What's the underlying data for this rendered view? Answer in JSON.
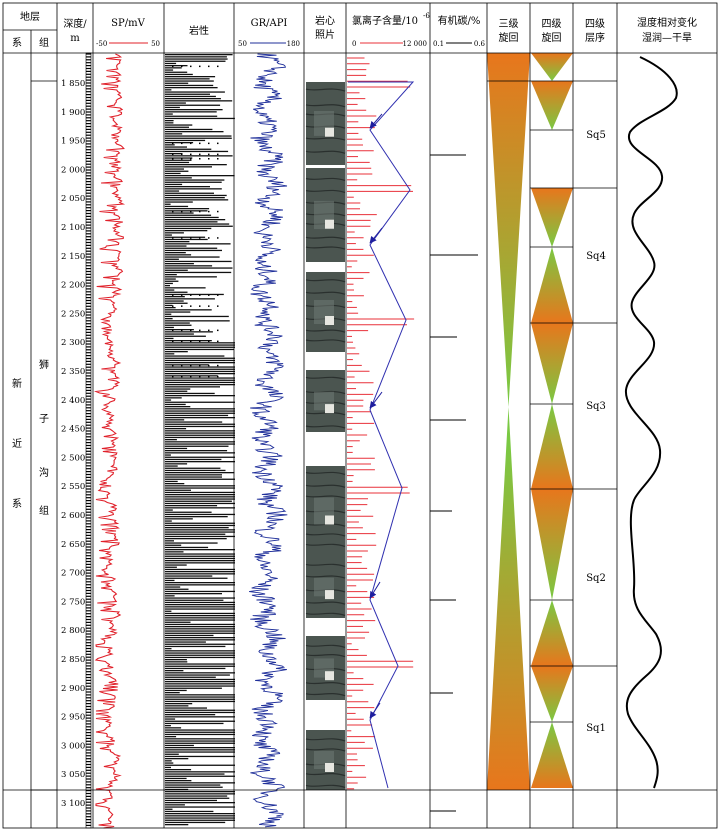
{
  "header": {
    "stratum": "地层",
    "system": "系",
    "group": "组",
    "depth_l1": "深度/",
    "depth_l2": "m",
    "sp_title": "SP/mV",
    "sp_min": "-50",
    "sp_max": "50",
    "lith_title": "岩性",
    "gr_title": "GR/API",
    "gr_min": "50",
    "gr_max": "180",
    "core_l1": "岩心",
    "core_l2": "照片",
    "cl_title": "氯离子含量/10",
    "cl_exp": "-6",
    "cl_min": "0",
    "cl_max": "12 000",
    "toc_title": "有机碳/%",
    "toc_min": "0.1",
    "toc_max": "0.6",
    "third_l1": "三级",
    "third_l2": "旋回",
    "fourth_l1": "四级",
    "fourth_l2": "旋回",
    "seq_l1": "四级",
    "seq_l2": "层序",
    "hum_l1": "湿度相对变化",
    "hum_l2": "湿润—干旱"
  },
  "system_chars": [
    "新",
    "近",
    "系"
  ],
  "group_chars": [
    "狮",
    "子",
    "沟",
    "组"
  ],
  "depth_ticks": [
    "1 850",
    "1 900",
    "1 950",
    "2 000",
    "2 050",
    "2 100",
    "2 150",
    "2 200",
    "2 250",
    "2 300",
    "2 350",
    "2 400",
    "2 450",
    "2 500",
    "2 550",
    "2 600",
    "2 650",
    "2 700",
    "2 750",
    "2 800",
    "2 850",
    "2 900",
    "2 950",
    "3 000",
    "3 050",
    "3 100"
  ],
  "sequences": [
    "Sq5",
    "Sq4",
    "Sq3",
    "Sq2",
    "Sq1"
  ],
  "colors": {
    "sp_curve": "#e0202a",
    "gr_curve": "#1f2f9a",
    "cl_bars": "#e8303a",
    "cl_trend": "#3030b0",
    "cycle_orange": "#e8761c",
    "cycle_green": "#7ac943"
  }
}
